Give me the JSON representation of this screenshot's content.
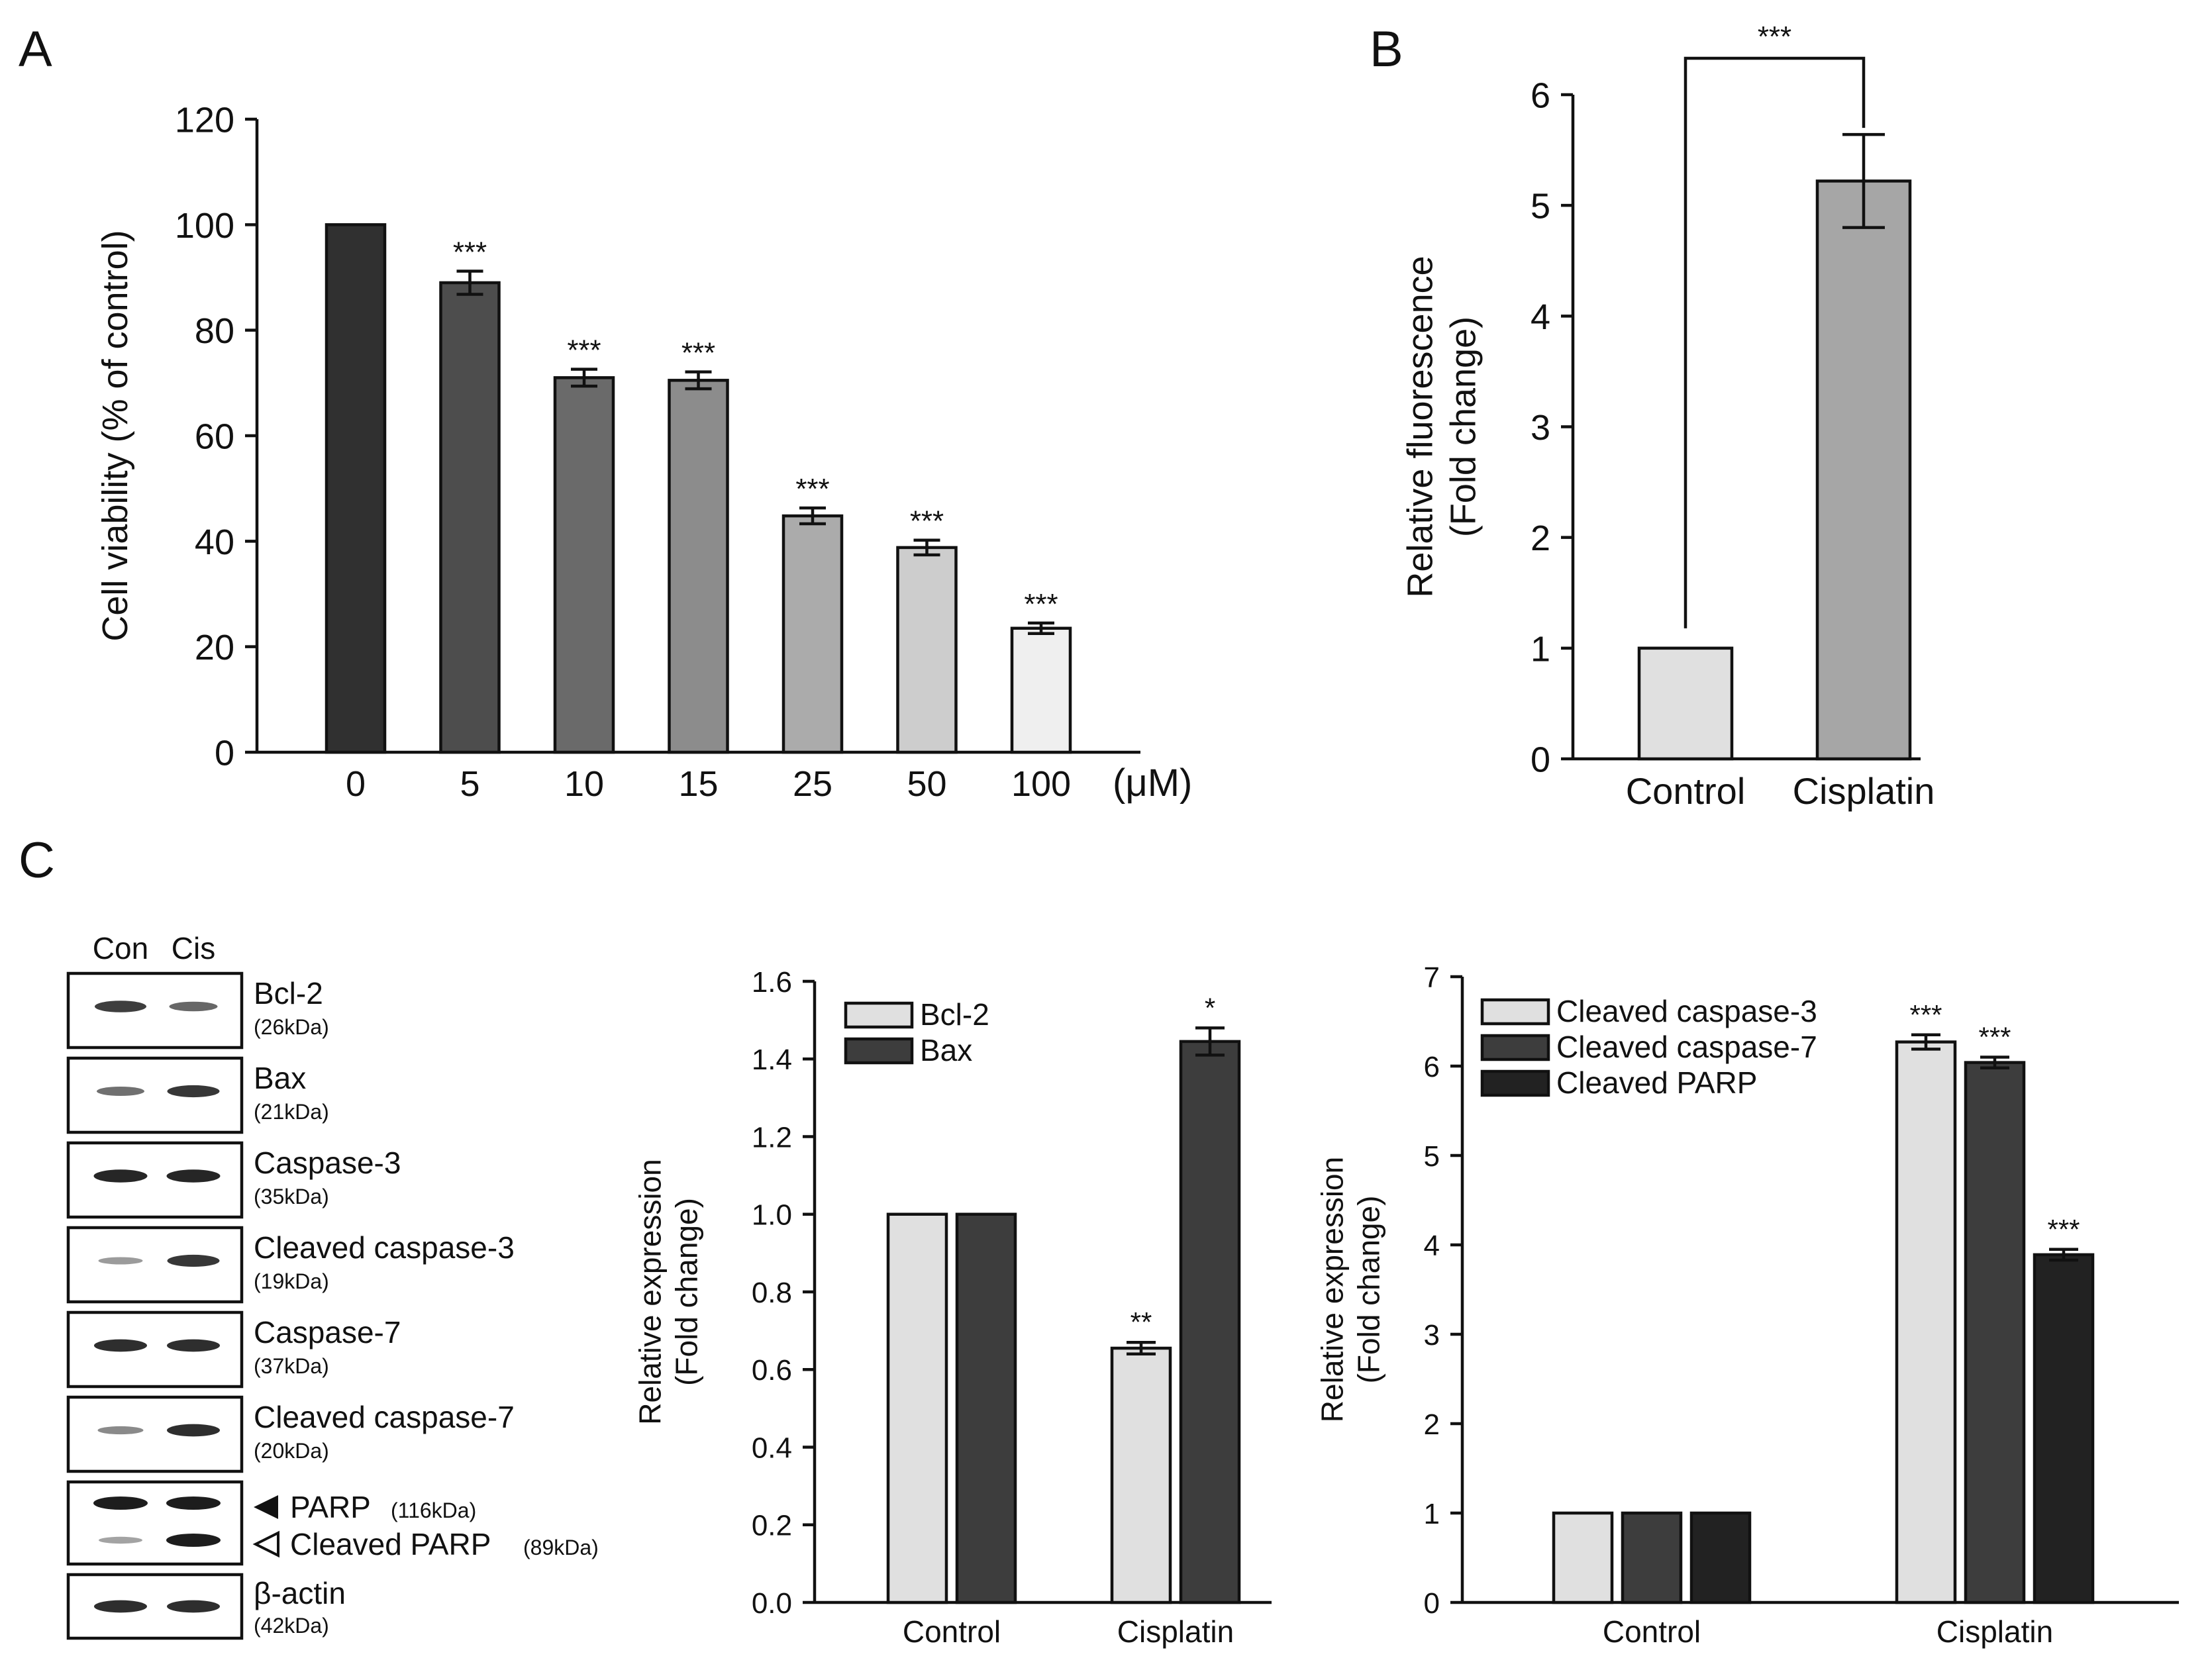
{
  "panels": {
    "a": "A",
    "b": "B",
    "c": "C"
  },
  "colors": {
    "series_dark": "#3d3d3d",
    "series_light": "#e0e0e0",
    "series_black": "#222222"
  },
  "chart_data": [
    {
      "id": "A",
      "type": "bar",
      "categories": [
        "0",
        "5",
        "10",
        "15",
        "25",
        "50",
        "100"
      ],
      "x_unit": "(μM)",
      "values": [
        100,
        89,
        71,
        70.5,
        44.8,
        38.8,
        23.5
      ],
      "errors": [
        0,
        2.2,
        1.6,
        1.6,
        1.5,
        1.4,
        1.0
      ],
      "significance": [
        "",
        "***",
        "***",
        "***",
        "***",
        "***",
        "***"
      ],
      "bar_colors": [
        "#303030",
        "#4d4d4d",
        "#6a6a6a",
        "#8c8c8c",
        "#ababab",
        "#cdcdcd",
        "#efefef"
      ],
      "ylabel": "Cell viability (% of control)",
      "xlabel": "",
      "ylim": [
        0,
        120
      ],
      "yticks": [
        0,
        20,
        40,
        60,
        80,
        100,
        120
      ]
    },
    {
      "id": "B",
      "type": "bar",
      "categories": [
        "Control",
        "Cisplatin"
      ],
      "values": [
        1,
        5.22
      ],
      "errors": [
        0,
        0.42
      ],
      "bar_colors": [
        "#e0e0e0",
        "#a6a6a6"
      ],
      "comparison": "***",
      "ylabel": [
        "Relative fluorescence",
        "(Fold change)"
      ],
      "ylim": [
        0,
        6
      ],
      "yticks": [
        0,
        1,
        2,
        3,
        4,
        5,
        6
      ]
    },
    {
      "id": "C-middle",
      "type": "bar",
      "categories": [
        "Control",
        "Cisplatin"
      ],
      "series": [
        {
          "name": "Bcl-2",
          "color": "#e0e0e0",
          "values": [
            1.0,
            0.655
          ],
          "errors": [
            0,
            0.015
          ],
          "significance": [
            "",
            "**"
          ]
        },
        {
          "name": "Bax",
          "color": "#3d3d3d",
          "values": [
            1.0,
            1.445
          ],
          "errors": [
            0,
            0.035
          ],
          "significance": [
            "",
            "*"
          ]
        }
      ],
      "ylabel": [
        "Relative expression",
        "(Fold change)"
      ],
      "ylim": [
        0,
        1.6
      ],
      "yticks": [
        "0.0",
        "0.2",
        "0.4",
        "0.6",
        "0.8",
        "1.0",
        "1.2",
        "1.4",
        "1.6"
      ],
      "legend": "top-left"
    },
    {
      "id": "C-right",
      "type": "bar",
      "categories": [
        "Control",
        "Cisplatin"
      ],
      "series": [
        {
          "name": "Cleaved caspase-3",
          "color": "#e0e0e0",
          "values": [
            1.0,
            6.27
          ],
          "errors": [
            0,
            0.08
          ],
          "significance": [
            "",
            "***"
          ]
        },
        {
          "name": "Cleaved caspase-7",
          "color": "#3d3d3d",
          "values": [
            1.0,
            6.04
          ],
          "errors": [
            0,
            0.06
          ],
          "significance": [
            "",
            "***"
          ]
        },
        {
          "name": "Cleaved PARP",
          "color": "#222222",
          "values": [
            1.0,
            3.89
          ],
          "errors": [
            0,
            0.06
          ],
          "significance": [
            "",
            "***"
          ]
        }
      ],
      "ylabel": [
        "Relative expression",
        "(Fold change)"
      ],
      "ylim": [
        0,
        7
      ],
      "yticks": [
        0,
        1,
        2,
        3,
        4,
        5,
        6,
        7
      ],
      "legend": "top-left"
    }
  ],
  "blot": {
    "lanes": [
      "Con",
      "Cis"
    ],
    "rows": [
      {
        "label": "Bcl-2",
        "kda": "(26kDa)",
        "bands": [
          0.8,
          0.55
        ]
      },
      {
        "label": "Bax",
        "kda": "(21kDa)",
        "bands": [
          0.5,
          0.85
        ]
      },
      {
        "label": "Caspase-3",
        "kda": "(35kDa)",
        "bands": [
          0.95,
          0.95
        ]
      },
      {
        "label": "Cleaved caspase-3",
        "kda": "(19kDa)",
        "bands": [
          0.25,
          0.85
        ]
      },
      {
        "label": "Caspase-7",
        "kda": "(37kDa)",
        "bands": [
          0.9,
          0.9
        ]
      },
      {
        "label": "Cleaved caspase-7",
        "kda": "(20kDa)",
        "bands": [
          0.35,
          0.9
        ]
      }
    ],
    "parp": {
      "label": "PARP",
      "kda": "(116kDa)",
      "cleaved_label": "Cleaved PARP",
      "cleaved_kda": "(89kDa)",
      "bands": [
        1.0,
        1.0
      ],
      "cleaved_bands": [
        0.2,
        1.0
      ]
    },
    "actin": {
      "label": "β-actin",
      "kda": "(42kDa)",
      "bands": [
        0.9,
        0.9
      ]
    }
  }
}
